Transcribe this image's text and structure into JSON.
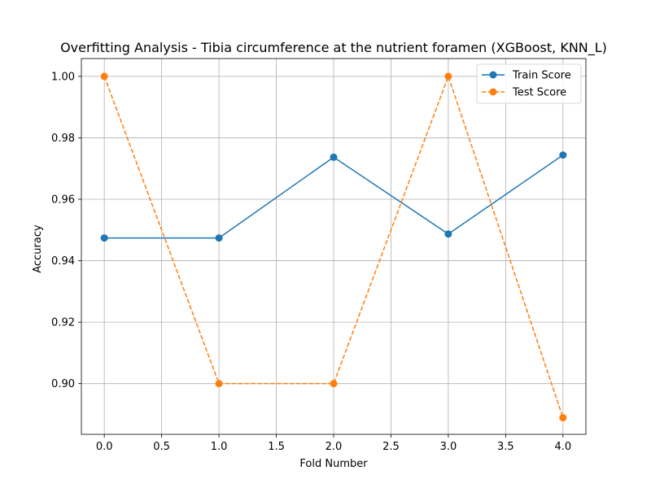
{
  "chart_data": {
    "type": "line",
    "title": "Overfitting Analysis - Tibia circumference at the nutrient foramen (XGBoost, KNN_L)",
    "xlabel": "Fold Number",
    "ylabel": "Accuracy",
    "xlim": [
      -0.2,
      4.2
    ],
    "ylim": [
      0.8835,
      1.0058
    ],
    "xticks": [
      0.0,
      0.5,
      1.0,
      1.5,
      2.0,
      2.5,
      3.0,
      3.5,
      4.0
    ],
    "xtick_labels": [
      "0.0",
      "0.5",
      "1.0",
      "1.5",
      "2.0",
      "2.5",
      "3.0",
      "3.5",
      "4.0"
    ],
    "yticks": [
      0.9,
      0.92,
      0.94,
      0.96,
      0.98,
      1.0
    ],
    "ytick_labels": [
      "0.90",
      "0.92",
      "0.94",
      "0.96",
      "0.98",
      "1.00"
    ],
    "grid": true,
    "legend_position": "top-right",
    "x": [
      0,
      1,
      2,
      3,
      4
    ],
    "series": [
      {
        "name": "Train Score",
        "values": [
          0.9474,
          0.9474,
          0.9737,
          0.9487,
          0.9744
        ],
        "color": "#1f77b4",
        "linestyle": "solid",
        "marker": "circle"
      },
      {
        "name": "Test Score",
        "values": [
          1.0,
          0.9,
          0.9,
          1.0,
          0.8889
        ],
        "color": "#ff7f0e",
        "linestyle": "dashed",
        "marker": "circle"
      }
    ]
  }
}
